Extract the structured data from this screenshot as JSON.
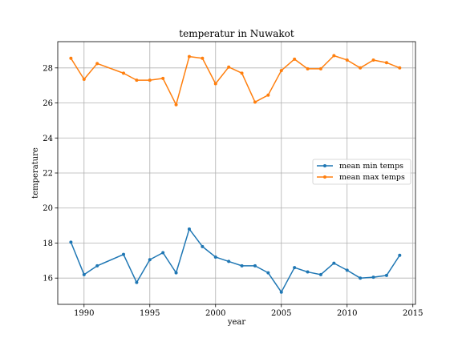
{
  "chart_data": {
    "type": "line",
    "title": "temperatur in Nuwakot",
    "xlabel": "year",
    "ylabel": "temperature",
    "xlim": [
      1988,
      2015.2
    ],
    "ylim": [
      14.5,
      29.5
    ],
    "x_ticks": [
      1990,
      1995,
      2000,
      2005,
      2010,
      2015
    ],
    "y_ticks": [
      16,
      18,
      20,
      22,
      24,
      26,
      28
    ],
    "grid": true,
    "legend_position": "center-right",
    "x": [
      1989,
      1990,
      1991,
      1993,
      1994,
      1995,
      1996,
      1997,
      1998,
      1999,
      2000,
      2001,
      2002,
      2003,
      2004,
      2005,
      2006,
      2007,
      2008,
      2009,
      2010,
      2011,
      2012,
      2013,
      2014
    ],
    "series": [
      {
        "name": "mean min temps",
        "color": "#1f77b4",
        "values": [
          18.05,
          16.2,
          16.7,
          17.35,
          15.75,
          17.05,
          17.45,
          16.3,
          18.8,
          17.8,
          17.2,
          16.95,
          16.7,
          16.7,
          16.3,
          15.2,
          16.6,
          16.35,
          16.2,
          16.85,
          16.45,
          16.0,
          16.05,
          16.15,
          17.3
        ]
      },
      {
        "name": "mean max temps",
        "color": "#ff7f0e",
        "values": [
          28.55,
          27.35,
          28.25,
          27.7,
          27.3,
          27.3,
          27.4,
          25.9,
          28.65,
          28.55,
          27.1,
          28.05,
          27.7,
          26.05,
          26.45,
          27.85,
          28.5,
          27.95,
          27.95,
          28.7,
          28.45,
          28.0,
          28.45,
          28.3,
          28.0
        ]
      }
    ]
  }
}
